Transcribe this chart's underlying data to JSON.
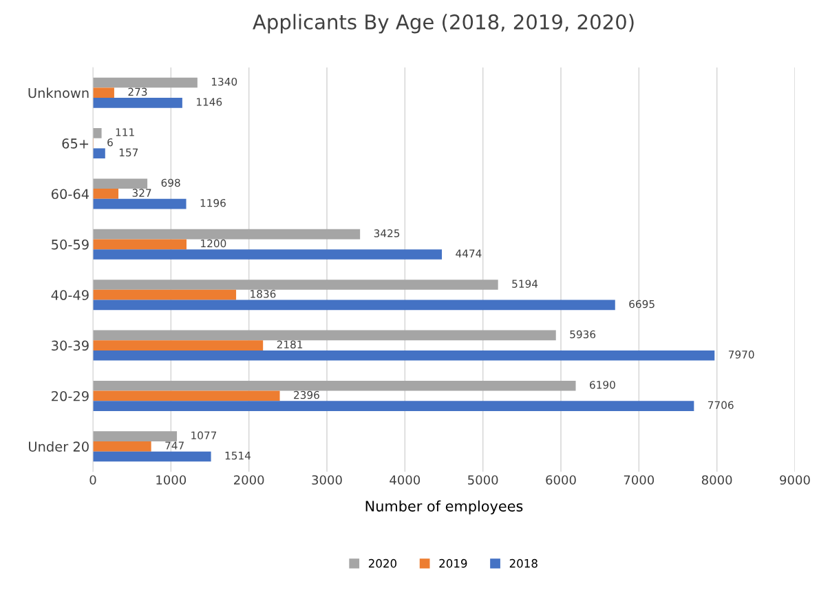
{
  "chart_data": {
    "type": "bar",
    "orientation": "horizontal",
    "title": "Applicants By Age (2018, 2019, 2020)",
    "xlabel": "Number of employees",
    "categories": [
      "Unknown",
      "65+",
      "60-64",
      "50-59",
      "40-49",
      "30-39",
      "20-29",
      "Under 20"
    ],
    "series": [
      {
        "name": "2020",
        "color": "#a5a5a5",
        "values": [
          1340,
          111,
          698,
          3425,
          5194,
          5936,
          6190,
          1077
        ]
      },
      {
        "name": "2019",
        "color": "#ed7d31",
        "values": [
          273,
          6,
          327,
          1200,
          1836,
          2181,
          2396,
          747
        ]
      },
      {
        "name": "2018",
        "color": "#4472c4",
        "values": [
          1146,
          157,
          1196,
          4474,
          6695,
          7970,
          7706,
          1514
        ]
      }
    ],
    "xlim": [
      0,
      9000
    ],
    "xticks": [
      0,
      1000,
      2000,
      3000,
      4000,
      5000,
      6000,
      7000,
      8000,
      9000
    ],
    "grid": "x",
    "legend": "bottom",
    "data_labels": true
  }
}
